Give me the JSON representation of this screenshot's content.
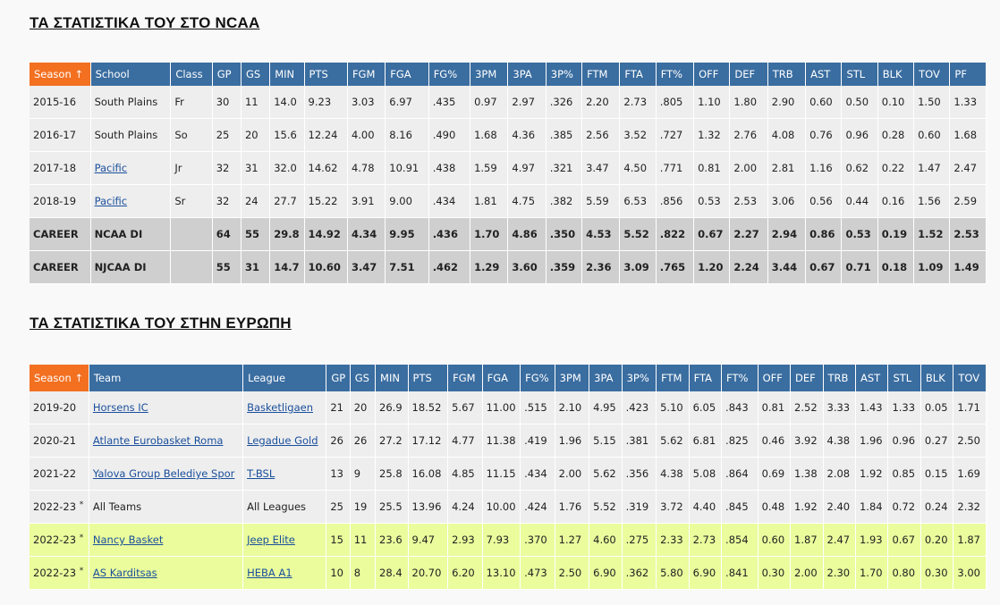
{
  "ncaa": {
    "title": "ΤΑ ΣΤΑΤΙΣΤΙΚΑ ΤΟΥ ΣΤΟ NCAA",
    "headers": [
      "Season ↑",
      "School",
      "Class",
      "GP",
      "GS",
      "MIN",
      "PTS",
      "FGM",
      "FGA",
      "FG%",
      "3PM",
      "3PA",
      "3P%",
      "FTM",
      "FTA",
      "FT%",
      "OFF",
      "DEF",
      "TRB",
      "AST",
      "STL",
      "BLK",
      "TOV",
      "PF"
    ],
    "rows": [
      {
        "season": "2015-16",
        "school": "South Plains",
        "school_link": false,
        "class": "Fr",
        "stats": [
          "30",
          "11",
          "14.0",
          "9.23",
          "3.03",
          "6.97",
          ".435",
          "0.97",
          "2.97",
          ".326",
          "2.20",
          "2.73",
          ".805",
          "1.10",
          "1.80",
          "2.90",
          "0.60",
          "0.50",
          "0.10",
          "1.50",
          "1.33"
        ]
      },
      {
        "season": "2016-17",
        "school": "South Plains",
        "school_link": false,
        "class": "So",
        "stats": [
          "25",
          "20",
          "15.6",
          "12.24",
          "4.00",
          "8.16",
          ".490",
          "1.68",
          "4.36",
          ".385",
          "2.56",
          "3.52",
          ".727",
          "1.32",
          "2.76",
          "4.08",
          "0.76",
          "0.96",
          "0.28",
          "0.60",
          "1.68"
        ]
      },
      {
        "season": "2017-18",
        "school": "Pacific",
        "school_link": true,
        "class": "Jr",
        "stats": [
          "32",
          "31",
          "32.0",
          "14.62",
          "4.78",
          "10.91",
          ".438",
          "1.59",
          "4.97",
          ".321",
          "3.47",
          "4.50",
          ".771",
          "0.81",
          "2.00",
          "2.81",
          "1.16",
          "0.62",
          "0.22",
          "1.47",
          "2.47"
        ]
      },
      {
        "season": "2018-19",
        "school": "Pacific",
        "school_link": true,
        "class": "Sr",
        "stats": [
          "32",
          "24",
          "27.7",
          "15.22",
          "3.91",
          "9.00",
          ".434",
          "1.81",
          "4.75",
          ".382",
          "5.59",
          "6.53",
          ".856",
          "0.53",
          "2.53",
          "3.06",
          "0.56",
          "0.44",
          "0.16",
          "1.56",
          "2.59"
        ]
      }
    ],
    "career": [
      {
        "season": "CAREER",
        "school": "NCAA DI",
        "class": "",
        "stats": [
          "64",
          "55",
          "29.8",
          "14.92",
          "4.34",
          "9.95",
          ".436",
          "1.70",
          "4.86",
          ".350",
          "4.53",
          "5.52",
          ".822",
          "0.67",
          "2.27",
          "2.94",
          "0.86",
          "0.53",
          "0.19",
          "1.52",
          "2.53"
        ]
      },
      {
        "season": "CAREER",
        "school": "NJCAA DI",
        "class": "",
        "stats": [
          "55",
          "31",
          "14.7",
          "10.60",
          "3.47",
          "7.51",
          ".462",
          "1.29",
          "3.60",
          ".359",
          "2.36",
          "3.09",
          ".765",
          "1.20",
          "2.24",
          "3.44",
          "0.67",
          "0.71",
          "0.18",
          "1.09",
          "1.49"
        ]
      }
    ]
  },
  "europe": {
    "title": "ΤΑ ΣΤΑΤΙΣΤΙΚΑ ΤΟΥ ΣΤΗΝ ΕΥΡΩΠΗ",
    "headers": [
      "Season ↑",
      "Team",
      "League",
      "GP",
      "GS",
      "MIN",
      "PTS",
      "FGM",
      "FGA",
      "FG%",
      "3PM",
      "3PA",
      "3P%",
      "FTM",
      "FTA",
      "FT%",
      "OFF",
      "DEF",
      "TRB",
      "AST",
      "STL",
      "BLK",
      "TOV"
    ],
    "rows": [
      {
        "season": "2019-20",
        "star": "",
        "team": "Horsens IC",
        "team_link": true,
        "league": "Basketligaen",
        "league_link": true,
        "highlight": false,
        "stats": [
          "21",
          "20",
          "26.9",
          "18.52",
          "5.67",
          "11.00",
          ".515",
          "2.10",
          "4.95",
          ".423",
          "5.10",
          "6.05",
          ".843",
          "0.81",
          "2.52",
          "3.33",
          "1.43",
          "1.33",
          "0.05",
          "1.71"
        ]
      },
      {
        "season": "2020-21",
        "star": "",
        "team": "Atlante Eurobasket Roma",
        "team_link": true,
        "league": "Legadue Gold",
        "league_link": true,
        "highlight": false,
        "stats": [
          "26",
          "26",
          "27.2",
          "17.12",
          "4.77",
          "11.38",
          ".419",
          "1.96",
          "5.15",
          ".381",
          "5.62",
          "6.81",
          ".825",
          "0.46",
          "3.92",
          "4.38",
          "1.96",
          "0.96",
          "0.27",
          "2.50"
        ]
      },
      {
        "season": "2021-22",
        "star": "",
        "team": "Yalova Group Belediye Spor",
        "team_link": true,
        "league": "T-BSL",
        "league_link": true,
        "highlight": false,
        "stats": [
          "13",
          "9",
          "25.8",
          "16.08",
          "4.85",
          "11.15",
          ".434",
          "2.00",
          "5.62",
          ".356",
          "4.38",
          "5.08",
          ".864",
          "0.69",
          "1.38",
          "2.08",
          "1.92",
          "0.85",
          "0.15",
          "1.69"
        ]
      },
      {
        "season": "2022-23",
        "star": "*",
        "team": "All Teams",
        "team_link": false,
        "league": "All Leagues",
        "league_link": false,
        "highlight": false,
        "stats": [
          "25",
          "19",
          "25.5",
          "13.96",
          "4.24",
          "10.00",
          ".424",
          "1.76",
          "5.52",
          ".319",
          "3.72",
          "4.40",
          ".845",
          "0.48",
          "1.92",
          "2.40",
          "1.84",
          "0.72",
          "0.24",
          "2.32"
        ]
      },
      {
        "season": "2022-23",
        "star": "*",
        "team": "Nancy Basket",
        "team_link": true,
        "league": "Jeep Elite",
        "league_link": true,
        "highlight": true,
        "stats": [
          "15",
          "11",
          "23.6",
          "9.47",
          "2.93",
          "7.93",
          ".370",
          "1.27",
          "4.60",
          ".275",
          "2.33",
          "2.73",
          ".854",
          "0.60",
          "1.87",
          "2.47",
          "1.93",
          "0.67",
          "0.20",
          "1.87"
        ]
      },
      {
        "season": "2022-23",
        "star": "*",
        "team": "AS Karditsas",
        "team_link": true,
        "league": "HEBA A1",
        "league_link": true,
        "highlight": true,
        "stats": [
          "10",
          "8",
          "28.4",
          "20.70",
          "6.20",
          "13.10",
          ".473",
          "2.50",
          "6.90",
          ".362",
          "5.80",
          "6.90",
          ".841",
          "0.30",
          "2.00",
          "2.30",
          "1.70",
          "0.80",
          "0.30",
          "3.00"
        ]
      }
    ]
  },
  "colors": {
    "header": "#3a6da0",
    "sorted_header": "#f37021",
    "row": "#eeeeee",
    "career": "#cfcfcf",
    "highlight": "#eafc9c",
    "link": "#1a4f9c"
  }
}
